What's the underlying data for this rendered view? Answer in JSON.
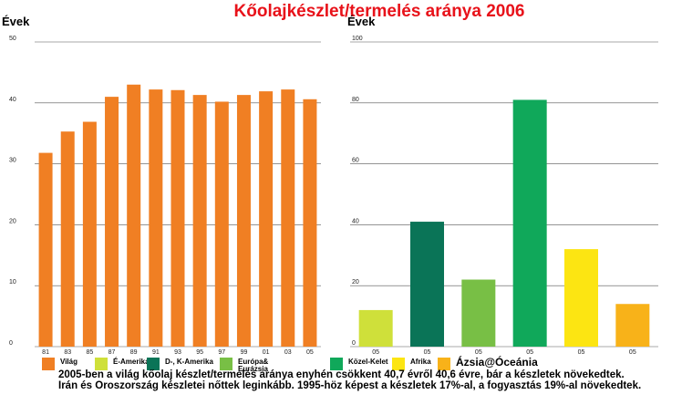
{
  "title": "Kőolajkészlet/termelés aránya 2006",
  "chart_data": [
    {
      "type": "bar",
      "ylabel": "Évek",
      "ylim": [
        0,
        50
      ],
      "yticks": [
        0,
        10,
        20,
        30,
        40,
        50
      ],
      "categories": [
        "81",
        "83",
        "85",
        "87",
        "89",
        "91",
        "93",
        "95",
        "97",
        "99",
        "01",
        "03",
        "05"
      ],
      "values": [
        31.8,
        35.3,
        36.9,
        41,
        43,
        42.2,
        42.1,
        41.3,
        40.2,
        41.3,
        41.9,
        42.2,
        40.6
      ],
      "color": "#f07f23",
      "grid": true
    },
    {
      "type": "bar",
      "ylabel": "Évek",
      "ylim": [
        0,
        100
      ],
      "yticks": [
        0,
        20,
        40,
        60,
        80,
        100
      ],
      "categories": [
        "05",
        "05",
        "05",
        "05",
        "05",
        "05"
      ],
      "values": [
        12,
        41,
        22,
        81,
        32,
        14
      ],
      "colors": [
        "#cfe03a",
        "#0a7457",
        "#78bf45",
        "#10a85a",
        "#fce512",
        "#f8b219"
      ],
      "grid": true
    }
  ],
  "legend": [
    {
      "label": "Világ",
      "color": "#f07f23"
    },
    {
      "label": "É-Amerika",
      "color": "#cfe03a"
    },
    {
      "label": "D-, K-Amerika",
      "color": "#0a7457"
    },
    {
      "label": "Európa& Eurázsia",
      "color": "#78bf45"
    },
    {
      "label": "Közel-Kelet",
      "color": "#10a85a"
    },
    {
      "label": "Afrika",
      "color": "#fce512"
    },
    {
      "label": "Ázsia@Óceánia",
      "color": "#f8b219"
    }
  ],
  "caption": "2005-ben a világ kőolaj készlet/termelés aránya enyhén csökkent 40,7 évről 40,6 évre, bár a készletek növekedtek. Irán és Oroszország készletei nőttek leginkább. 1995-höz képest a készletek 17%-al, a fogyasztás 19%-al növekedtek."
}
